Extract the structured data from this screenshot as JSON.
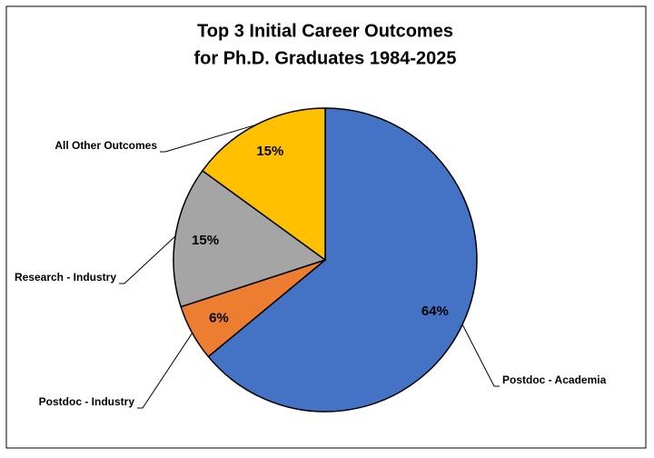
{
  "chart_data": {
    "type": "pie",
    "title": [
      "Top 3 Initial Career Outcomes",
      "for Ph.D. Graduates 1984-2025"
    ],
    "categories": [
      "Postdoc - Academia",
      "Postdoc - Industry",
      "Research - Industry",
      "All Other Outcomes"
    ],
    "values": [
      64,
      6,
      15,
      15
    ],
    "value_labels": [
      "64%",
      "6%",
      "15%",
      "15%"
    ],
    "colors": [
      "#4472c4",
      "#ed7d31",
      "#a5a5a5",
      "#ffc000"
    ]
  }
}
